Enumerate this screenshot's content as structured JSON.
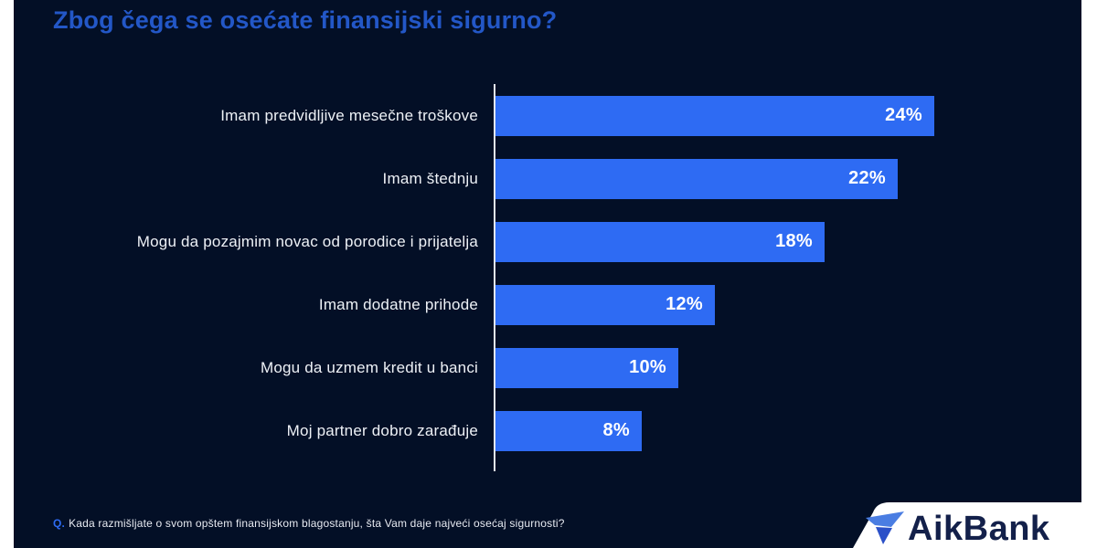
{
  "title": "Zbog čega se osećate finansijski sigurno?",
  "chart_data": {
    "type": "bar",
    "orientation": "horizontal",
    "title": "Zbog čega se osećate finansijski sigurno?",
    "categories": [
      "Imam predvidljive mesečne troškove",
      "Imam štednju",
      "Mogu da pozajmim novac od porodice i prijatelja",
      "Imam dodatne prihode",
      "Mogu da uzmem kredit u banci",
      "Moj partner dobro zarađuje"
    ],
    "values": [
      24,
      22,
      18,
      12,
      10,
      8
    ],
    "value_labels": [
      "24%",
      "22%",
      "18%",
      "12%",
      "10%",
      "8%"
    ],
    "unit": "%",
    "xlim": [
      0,
      24
    ],
    "grid": false,
    "legend": false,
    "bar_color": "#2e6bf3",
    "background_color": "#030f26"
  },
  "footnote": {
    "prefix": "Q.",
    "text": "Kada razmišljate o svom opštem finansijskom blagostanju, šta Vam daje najveći osećaj sigurnosti?"
  },
  "logo": {
    "text": "AikBank",
    "mark_icon": "aikbank-logo-mark"
  },
  "colors": {
    "page_bg": "#ffffff",
    "slide_bg": "#030f26",
    "title": "#2357c7",
    "bar": "#2e6bf3",
    "label_text": "#eef1f6",
    "value_text": "#ffffff",
    "axis_line": "#e3e7ee",
    "q_prefix": "#2e6bf3",
    "footnote_text": "#e8ebf2",
    "logo_text": "#13204a",
    "logo_mark_light": "#4a7de2",
    "logo_mark_dark": "#2b50c8"
  }
}
